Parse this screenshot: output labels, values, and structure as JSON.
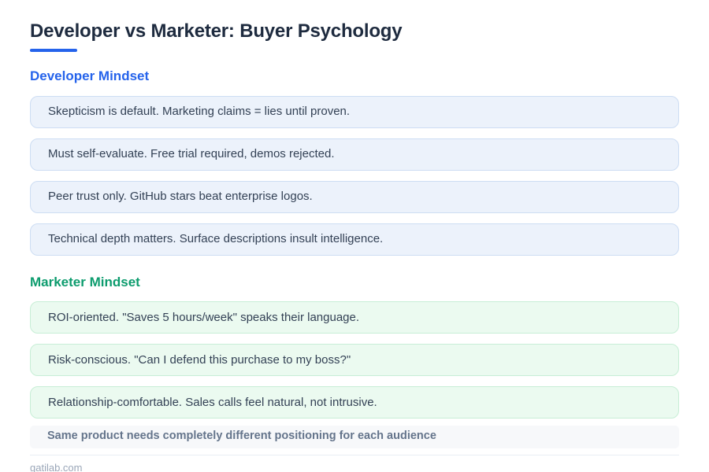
{
  "page": {
    "title": "Developer vs Marketer: Buyer Psychology",
    "footer_note": "Same product needs completely different positioning for each audience",
    "watermark": "gatilab.com"
  },
  "colors": {
    "title_text": "#1e2b3f",
    "accent_blue": "#2563eb",
    "accent_green": "#0d9c6e",
    "card_blue_bg": "#ecf2fb",
    "card_blue_border": "#cdddf3",
    "card_green_bg": "#ebfaf0",
    "card_green_border": "#c7eed6",
    "card_text": "#334155",
    "footer_bar_bg": "#f7f8fa",
    "footer_text": "#64748b",
    "watermark_text": "#9aa6b8"
  },
  "sections": [
    {
      "heading": "Developer Mindset",
      "items": [
        "Skepticism is default. Marketing claims = lies until proven.",
        "Must self-evaluate. Free trial required, demos rejected.",
        "Peer trust only. GitHub stars beat enterprise logos.",
        "Technical depth matters. Surface descriptions insult intelligence."
      ]
    },
    {
      "heading": "Marketer Mindset",
      "items": [
        "ROI-oriented. \"Saves 5 hours/week\" speaks their language.",
        "Risk-conscious. \"Can I defend this purchase to my boss?\"",
        "Relationship-comfortable. Sales calls feel natural, not intrusive."
      ]
    }
  ]
}
